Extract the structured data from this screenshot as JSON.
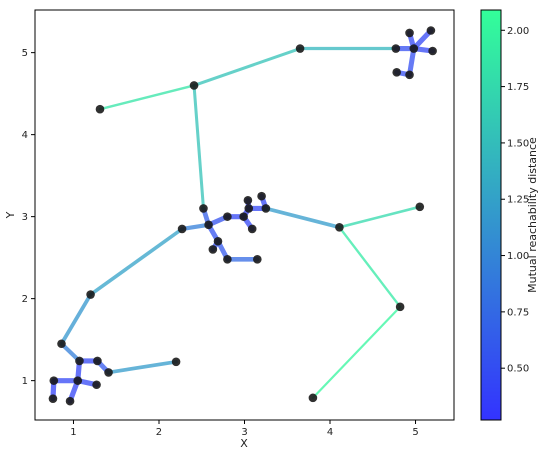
{
  "chart_data": {
    "type": "scatter",
    "title": "",
    "xlabel": "X",
    "ylabel": "Y",
    "xlim": [
      0.55,
      5.45
    ],
    "ylim": [
      0.52,
      5.52
    ],
    "x_ticks": [
      1,
      2,
      3,
      4,
      5
    ],
    "y_ticks": [
      1,
      2,
      3,
      4,
      5
    ],
    "grid": false,
    "colorbar": {
      "label": "Mutual reachability distance",
      "range": [
        0.27,
        2.09
      ],
      "ticks": [
        0.5,
        0.75,
        1.0,
        1.25,
        1.5,
        1.75,
        2.0
      ],
      "tick_labels": [
        "0.50",
        "0.75",
        "1.00",
        "1.25",
        "1.50",
        "1.75",
        "2.00"
      ],
      "color_low": "#3333ff",
      "color_high": "#33ff99"
    },
    "point_color": "#1a1a1a",
    "points": [
      [
        0.76,
        0.78
      ],
      [
        0.96,
        0.75
      ],
      [
        0.77,
        1.0
      ],
      [
        1.05,
        1.0
      ],
      [
        1.27,
        0.95
      ],
      [
        1.07,
        1.24
      ],
      [
        1.28,
        1.24
      ],
      [
        1.41,
        1.1
      ],
      [
        2.2,
        1.23
      ],
      [
        0.86,
        1.45
      ],
      [
        1.2,
        2.05
      ],
      [
        2.27,
        2.85
      ],
      [
        2.52,
        3.1
      ],
      [
        2.58,
        2.9
      ],
      [
        2.63,
        2.6
      ],
      [
        2.69,
        2.7
      ],
      [
        2.8,
        3.0
      ],
      [
        2.8,
        2.48
      ],
      [
        2.99,
        3.0
      ],
      [
        3.04,
        3.2
      ],
      [
        3.05,
        3.1
      ],
      [
        3.09,
        2.85
      ],
      [
        3.15,
        2.48
      ],
      [
        3.2,
        3.25
      ],
      [
        3.25,
        3.1
      ],
      [
        4.11,
        2.87
      ],
      [
        5.05,
        3.12
      ],
      [
        4.82,
        1.9
      ],
      [
        3.8,
        0.79
      ],
      [
        1.31,
        4.31
      ],
      [
        2.41,
        4.6
      ],
      [
        3.65,
        5.05
      ],
      [
        4.77,
        5.05
      ],
      [
        4.98,
        5.05
      ],
      [
        5.2,
        5.02
      ],
      [
        4.93,
        5.24
      ],
      [
        5.18,
        5.27
      ],
      [
        4.78,
        4.76
      ],
      [
        4.93,
        4.73
      ]
    ],
    "edges": [
      {
        "from": [
          0.77,
          1.0
        ],
        "to": [
          1.05,
          1.0
        ],
        "distance": 0.45
      },
      {
        "from": [
          1.05,
          1.0
        ],
        "to": [
          0.96,
          0.75
        ],
        "distance": 0.42
      },
      {
        "from": [
          1.05,
          1.0
        ],
        "to": [
          1.27,
          0.95
        ],
        "distance": 0.45
      },
      {
        "from": [
          0.77,
          1.0
        ],
        "to": [
          0.76,
          0.78
        ],
        "distance": 0.4
      },
      {
        "from": [
          1.05,
          1.0
        ],
        "to": [
          1.07,
          1.24
        ],
        "distance": 0.42
      },
      {
        "from": [
          1.07,
          1.24
        ],
        "to": [
          1.28,
          1.24
        ],
        "distance": 0.45
      },
      {
        "from": [
          1.28,
          1.24
        ],
        "to": [
          1.41,
          1.1
        ],
        "distance": 0.6
      },
      {
        "from": [
          1.41,
          1.1
        ],
        "to": [
          2.2,
          1.23
        ],
        "distance": 1.2
      },
      {
        "from": [
          1.07,
          1.24
        ],
        "to": [
          0.86,
          1.45
        ],
        "distance": 0.95
      },
      {
        "from": [
          0.86,
          1.45
        ],
        "to": [
          1.2,
          2.05
        ],
        "distance": 1.15
      },
      {
        "from": [
          1.2,
          2.05
        ],
        "to": [
          2.27,
          2.85
        ],
        "distance": 1.25
      },
      {
        "from": [
          2.27,
          2.85
        ],
        "to": [
          2.58,
          2.9
        ],
        "distance": 0.95
      },
      {
        "from": [
          2.58,
          2.9
        ],
        "to": [
          2.52,
          3.1
        ],
        "distance": 0.65
      },
      {
        "from": [
          2.58,
          2.9
        ],
        "to": [
          2.8,
          3.0
        ],
        "distance": 0.55
      },
      {
        "from": [
          2.8,
          3.0
        ],
        "to": [
          2.99,
          3.0
        ],
        "distance": 0.45
      },
      {
        "from": [
          2.99,
          3.0
        ],
        "to": [
          3.05,
          3.1
        ],
        "distance": 0.4
      },
      {
        "from": [
          3.05,
          3.1
        ],
        "to": [
          3.04,
          3.2
        ],
        "distance": 0.4
      },
      {
        "from": [
          3.05,
          3.1
        ],
        "to": [
          3.25,
          3.1
        ],
        "distance": 0.45
      },
      {
        "from": [
          3.25,
          3.1
        ],
        "to": [
          3.2,
          3.25
        ],
        "distance": 0.45
      },
      {
        "from": [
          2.99,
          3.0
        ],
        "to": [
          3.09,
          2.85
        ],
        "distance": 0.45
      },
      {
        "from": [
          2.58,
          2.9
        ],
        "to": [
          2.69,
          2.7
        ],
        "distance": 0.55
      },
      {
        "from": [
          2.69,
          2.7
        ],
        "to": [
          2.63,
          2.6
        ],
        "distance": 0.5
      },
      {
        "from": [
          2.69,
          2.7
        ],
        "to": [
          2.8,
          2.48
        ],
        "distance": 0.6
      },
      {
        "from": [
          2.8,
          2.48
        ],
        "to": [
          3.15,
          2.48
        ],
        "distance": 0.75
      },
      {
        "from": [
          3.25,
          3.1
        ],
        "to": [
          4.11,
          2.87
        ],
        "distance": 1.2
      },
      {
        "from": [
          4.11,
          2.87
        ],
        "to": [
          5.05,
          3.12
        ],
        "distance": 1.75
      },
      {
        "from": [
          4.11,
          2.87
        ],
        "to": [
          4.82,
          1.9
        ],
        "distance": 1.9
      },
      {
        "from": [
          4.82,
          1.9
        ],
        "to": [
          3.8,
          0.79
        ],
        "distance": 2.0
      },
      {
        "from": [
          2.52,
          3.1
        ],
        "to": [
          2.41,
          4.6
        ],
        "distance": 1.55
      },
      {
        "from": [
          2.41,
          4.6
        ],
        "to": [
          1.31,
          4.31
        ],
        "distance": 1.85
      },
      {
        "from": [
          2.41,
          4.6
        ],
        "to": [
          3.65,
          5.05
        ],
        "distance": 1.55
      },
      {
        "from": [
          3.65,
          5.05
        ],
        "to": [
          4.77,
          5.05
        ],
        "distance": 1.45
      },
      {
        "from": [
          4.77,
          5.05
        ],
        "to": [
          4.98,
          5.05
        ],
        "distance": 0.5
      },
      {
        "from": [
          4.98,
          5.05
        ],
        "to": [
          5.2,
          5.02
        ],
        "distance": 0.45
      },
      {
        "from": [
          4.98,
          5.05
        ],
        "to": [
          4.93,
          5.24
        ],
        "distance": 0.45
      },
      {
        "from": [
          4.98,
          5.05
        ],
        "to": [
          5.18,
          5.27
        ],
        "distance": 0.45
      },
      {
        "from": [
          4.98,
          5.05
        ],
        "to": [
          4.93,
          4.73
        ],
        "distance": 0.5
      },
      {
        "from": [
          4.93,
          4.73
        ],
        "to": [
          4.78,
          4.76
        ],
        "distance": 0.5
      }
    ]
  }
}
